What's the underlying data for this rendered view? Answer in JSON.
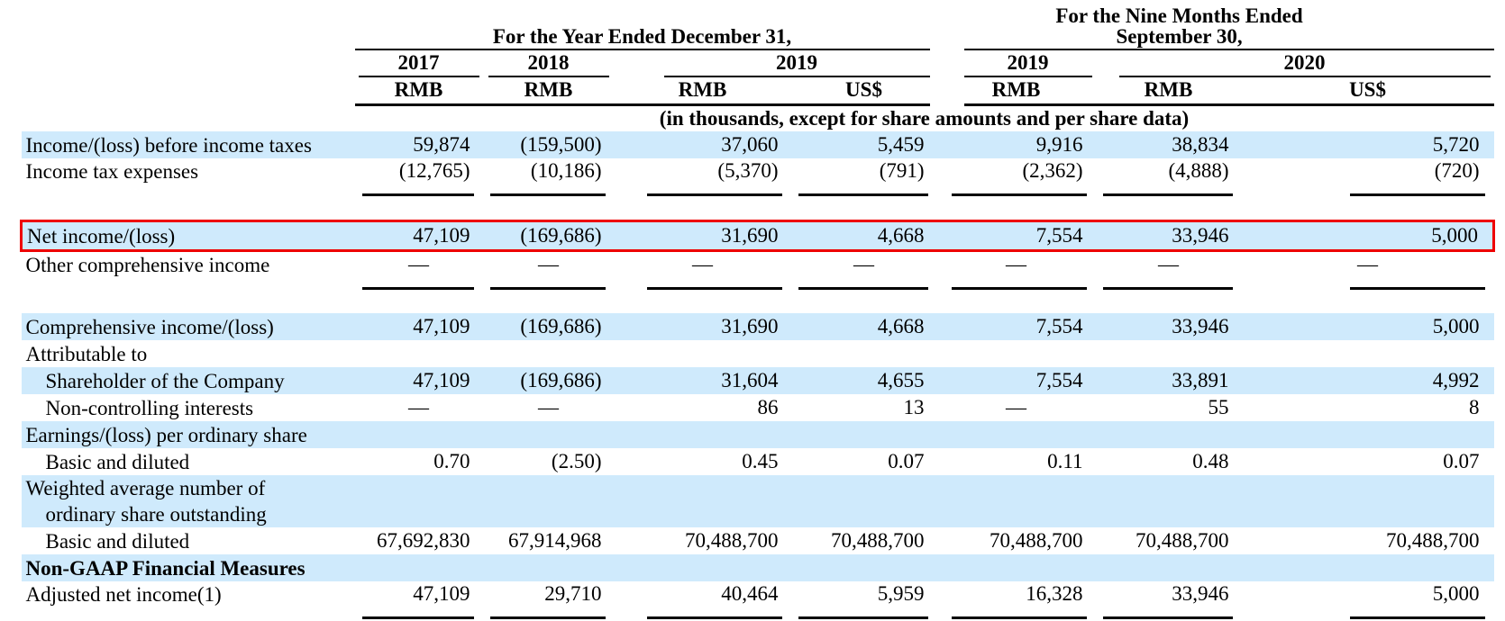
{
  "colors": {
    "highlight": "#cfeafc",
    "box": "#ee0000",
    "rule": "#000000"
  },
  "table": {
    "group_headers": [
      {
        "label": "For the Year Ended December 31,"
      },
      {
        "line1": "For the Nine Months Ended",
        "line2": "September 30,"
      }
    ],
    "year_headers": [
      "2017",
      "2018",
      "2019",
      "2019",
      "2020"
    ],
    "currency_headers": [
      "RMB",
      "RMB",
      "RMB",
      "US$",
      "RMB",
      "RMB",
      "US$"
    ],
    "units_note": "(in thousands, except for share amounts and per share data)",
    "rows": [
      {
        "label": "Income/(loss) before income taxes",
        "values": [
          "59,874",
          "(159,500)",
          "37,060",
          "5,459",
          "9,916",
          "38,834",
          "5,720"
        ],
        "highlight": true
      },
      {
        "label": "Income tax expenses",
        "values": [
          "(12,765)",
          "(10,186)",
          "(5,370)",
          "(791)",
          "(2,362)",
          "(4,888)",
          "(720)"
        ],
        "underline": true,
        "spacer_after": true
      },
      {
        "label": "Net income/(loss)",
        "values": [
          "47,109",
          "(169,686)",
          "31,690",
          "4,668",
          "7,554",
          "33,946",
          "5,000"
        ],
        "highlight": true,
        "boxed": true
      },
      {
        "label": "Other comprehensive income",
        "values": [
          "—",
          "—",
          "—",
          "—",
          "—",
          "—",
          "—"
        ],
        "underline": true,
        "spacer_after": true
      },
      {
        "label": "Comprehensive income/(loss)",
        "values": [
          "47,109",
          "(169,686)",
          "31,690",
          "4,668",
          "7,554",
          "33,946",
          "5,000"
        ],
        "highlight": true
      },
      {
        "label": "Attributable to",
        "values": [
          "",
          "",
          "",
          "",
          "",
          "",
          ""
        ]
      },
      {
        "label": "Shareholder of the Company",
        "indent": true,
        "values": [
          "47,109",
          "(169,686)",
          "31,604",
          "4,655",
          "7,554",
          "33,891",
          "4,992"
        ],
        "highlight": true
      },
      {
        "label": "Non-controlling interests",
        "indent": true,
        "values": [
          "—",
          "—",
          "86",
          "13",
          "—",
          "55",
          "8"
        ]
      },
      {
        "label": "Earnings/(loss) per ordinary share",
        "values": [
          "",
          "",
          "",
          "",
          "",
          "",
          ""
        ],
        "highlight": true
      },
      {
        "label": "Basic and diluted",
        "indent": true,
        "values": [
          "0.70",
          "(2.50)",
          "0.45",
          "0.07",
          "0.11",
          "0.48",
          "0.07"
        ]
      },
      {
        "label": "Weighted average number of",
        "label2": "ordinary share outstanding",
        "values": [
          "",
          "",
          "",
          "",
          "",
          "",
          ""
        ],
        "highlight": true
      },
      {
        "label": "Basic and diluted",
        "indent": true,
        "values": [
          "67,692,830",
          "67,914,968",
          "70,488,700",
          "70,488,700",
          "70,488,700",
          "70,488,700",
          "70,488,700"
        ]
      },
      {
        "label": "Non-GAAP Financial Measures",
        "values": [
          "",
          "",
          "",
          "",
          "",
          "",
          ""
        ],
        "highlight": true,
        "bold": true
      },
      {
        "label": "Adjusted net income(1)",
        "values": [
          "47,109",
          "29,710",
          "40,464",
          "5,959",
          "16,328",
          "33,946",
          "5,000"
        ],
        "underline": true
      }
    ]
  }
}
